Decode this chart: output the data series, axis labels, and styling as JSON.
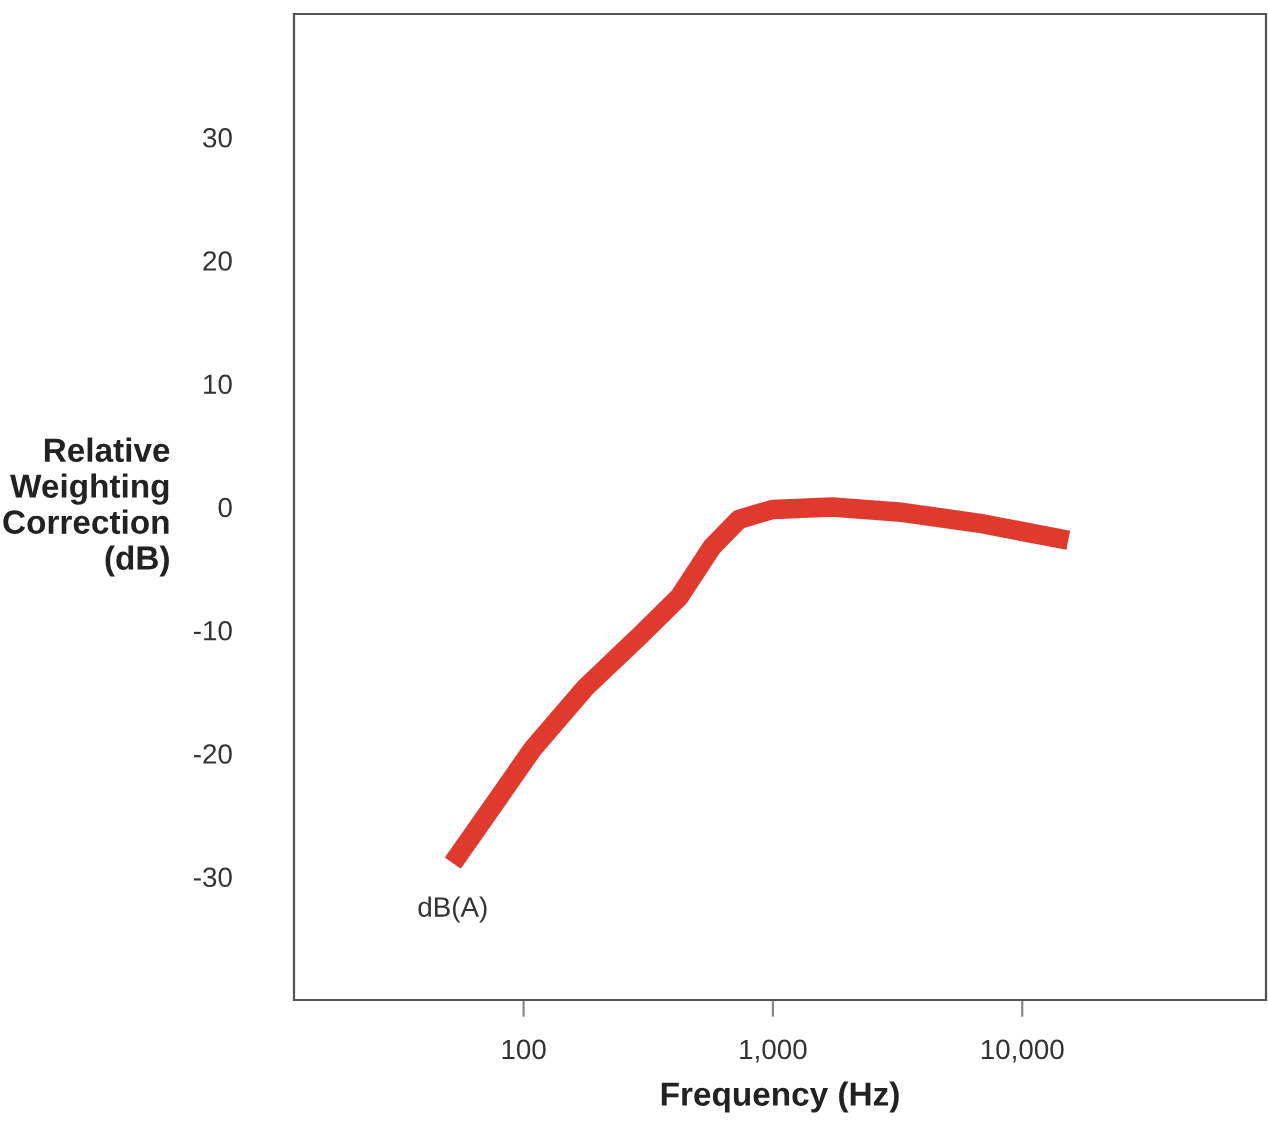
{
  "chart_data": {
    "type": "line",
    "xlabel": "Frequency (Hz)",
    "ylabel": "Relative\nWeighting\nCorrection\n(dB)",
    "log": "x",
    "xlim": [
      12,
      95000
    ],
    "ylim": [
      -40,
      40
    ],
    "xticks": [
      100,
      {
        "value": 1000,
        "label": "1,000"
      },
      {
        "value": 10000,
        "label": "10,000"
      }
    ],
    "yticks": [
      -30,
      -20,
      -10,
      0,
      10,
      20,
      30
    ],
    "grid": false,
    "marker": "none",
    "line_style": "solid",
    "series": [
      {
        "color": "#e03a2e",
        "x": [
          52,
          71,
          109,
          178,
          291,
          421,
          572,
          731,
          995,
          1730,
          3190,
          6670,
          15300
        ],
        "values": [
          -28.9,
          -25.0,
          -19.6,
          -14.6,
          -10.5,
          -7.3,
          -3.2,
          -1.0,
          -0.2,
          0,
          -0.4,
          -1.3,
          -2.7
        ]
      }
    ],
    "annotations": [
      {
        "text": "dB(A)",
        "x": 52,
        "y": -28.9
      }
    ]
  }
}
